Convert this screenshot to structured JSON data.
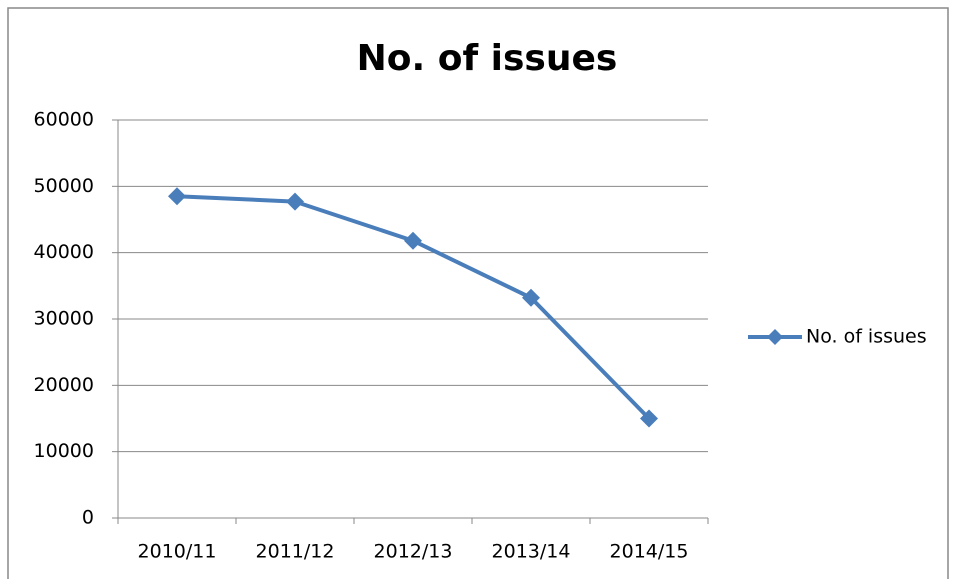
{
  "chart_data": {
    "type": "line",
    "title": "No. of issues",
    "categories": [
      "2010/11",
      "2011/12",
      "2012/13",
      "2013/14",
      "2014/15"
    ],
    "series": [
      {
        "name": "No. of issues",
        "color": "#4a7ebb",
        "values": [
          48500,
          47700,
          41800,
          33200,
          15000
        ]
      }
    ],
    "ylim": [
      0,
      60000
    ],
    "yticks": [
      0,
      10000,
      20000,
      30000,
      40000,
      50000,
      60000
    ],
    "grid": true,
    "legend": "right"
  }
}
